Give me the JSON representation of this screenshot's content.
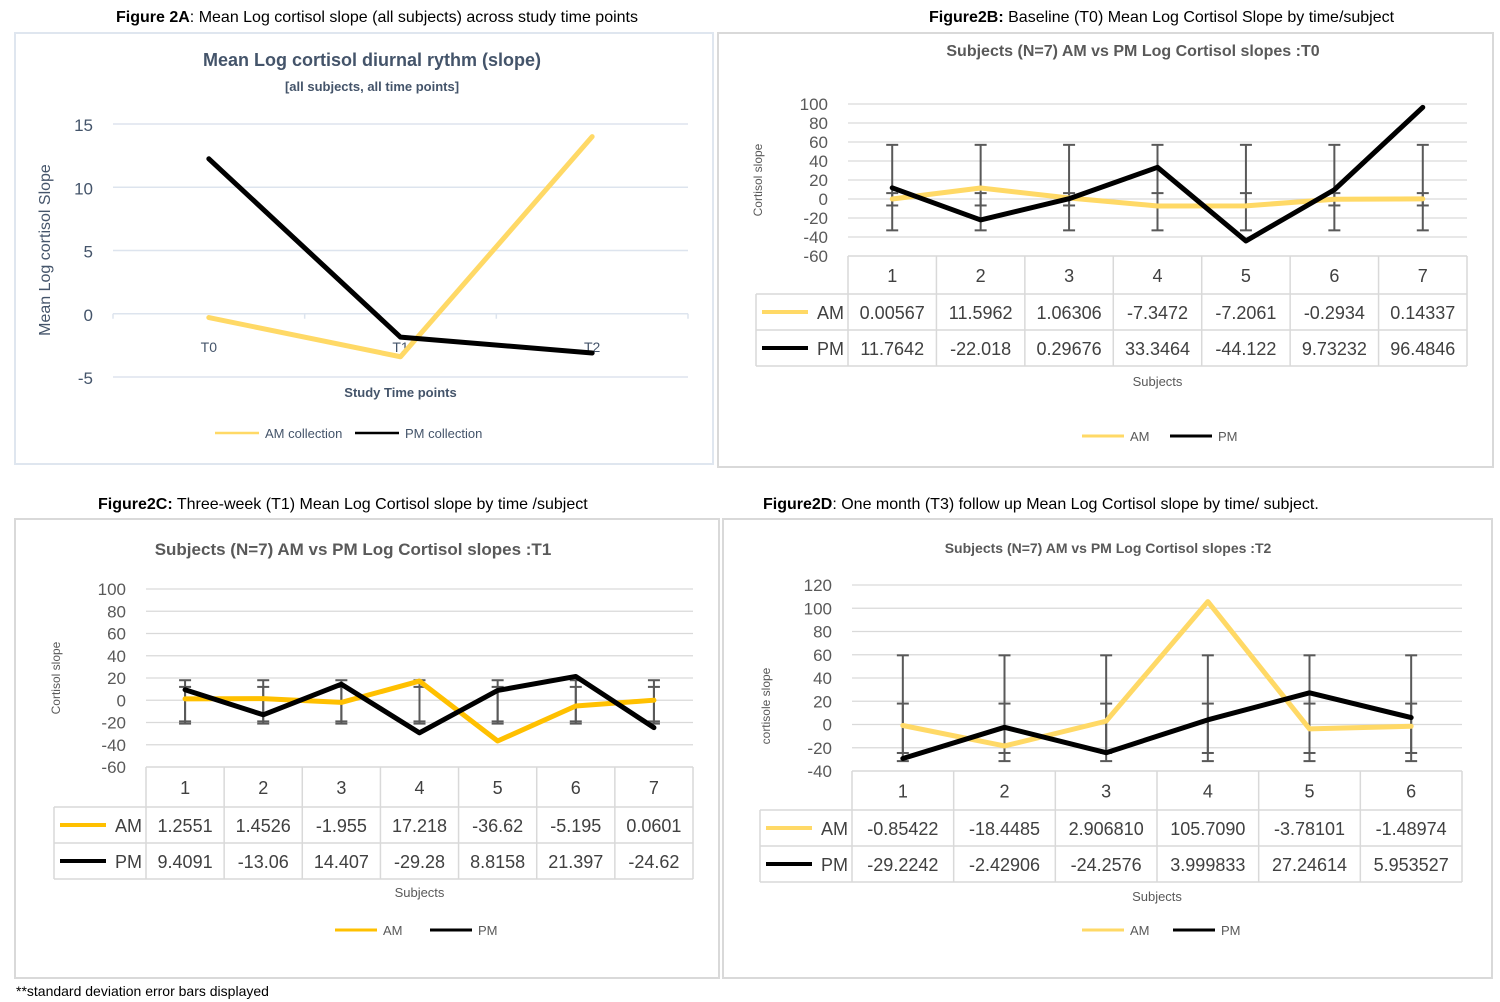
{
  "captions": {
    "a": {
      "bold": "Figure 2A",
      "rest": ": Mean Log cortisol slope (all subjects) across study time points"
    },
    "b": {
      "bold": "Figure2B:",
      "rest": " Baseline (T0) Mean Log Cortisol Slope by time/subject"
    },
    "c": {
      "bold": "Figure2C:",
      "rest": " Three-week (T1) Mean Log Cortisol slope by time /subject"
    },
    "d": {
      "bold": "Figure2D",
      "rest": ": One month (T3) follow up Mean Log Cortisol slope by time/ subject."
    }
  },
  "footnote": "**standard deviation error bars displayed",
  "colors": {
    "am_light": "#FFD966",
    "am_amber": "#FFC000",
    "pm": "#000000",
    "error_bar": "#595959",
    "grid": "#d9d9d9",
    "grid_blue": "#dde4ee",
    "slate_text": "#44546A",
    "gray_text": "#595959"
  },
  "chart_data": [
    {
      "id": "2A",
      "type": "line",
      "title": "Mean Log cortisol diurnal rythm (slope)",
      "subtitle": "[all subjects, all time points]",
      "xlabel": "Study Time points",
      "ylabel": "Mean Log cortisol Slope",
      "categories": [
        "T0",
        "T1",
        "T2"
      ],
      "ylim": [
        -5,
        15
      ],
      "yticks": [
        15,
        10,
        5,
        0,
        -5
      ],
      "grid": true,
      "legend_position": "bottom",
      "series": [
        {
          "name": "AM collection",
          "color": "#FFD966",
          "values": [
            -0.3,
            -3.4,
            14.0
          ]
        },
        {
          "name": "PM collection",
          "color": "#000000",
          "values": [
            12.25,
            -1.85,
            -3.1
          ]
        }
      ]
    },
    {
      "id": "2B",
      "type": "line",
      "title": "Subjects (N=7) AM vs PM Log Cortisol slopes :T0",
      "xlabel": "Subjects",
      "ylabel": "Cortisol slope",
      "categories": [
        "1",
        "2",
        "3",
        "4",
        "5",
        "6",
        "7"
      ],
      "ylim": [
        -60,
        100
      ],
      "yticks": [
        100,
        80,
        60,
        40,
        20,
        0,
        -20,
        -40,
        -60
      ],
      "grid": true,
      "legend_position": "bottom",
      "data_table": true,
      "error_bars": "standard deviation",
      "series": [
        {
          "name": "AM",
          "color": "#FFD966",
          "values": [
            0.00567,
            11.5962,
            1.06306,
            -7.3472,
            -7.2061,
            -0.2934,
            0.14337
          ],
          "labels": [
            "0.00567",
            "11.5962",
            "1.06306",
            "-7.3472",
            "-7.2061",
            "-0.2934",
            "0.14337"
          ],
          "error_range": [
            -6.8,
            6.2
          ]
        },
        {
          "name": "PM",
          "color": "#000000",
          "values": [
            11.7642,
            -22.018,
            0.29676,
            33.3464,
            -44.122,
            9.73232,
            96.4846
          ],
          "labels": [
            "11.7642",
            "-22.018",
            "0.29676",
            "33.3464",
            "-44.122",
            "9.73232",
            "96.4846"
          ],
          "error_range": [
            -33,
            57
          ]
        }
      ]
    },
    {
      "id": "2C",
      "type": "line",
      "title": "Subjects (N=7) AM vs PM Log Cortisol slopes :T1",
      "xlabel": "Subjects",
      "ylabel": "Cortisol slope",
      "categories": [
        "1",
        "2",
        "3",
        "4",
        "5",
        "6",
        "7"
      ],
      "ylim": [
        -60,
        100
      ],
      "yticks": [
        100,
        80,
        60,
        40,
        20,
        0,
        -20,
        -40,
        -60
      ],
      "grid": true,
      "legend_position": "bottom",
      "data_table": true,
      "error_bars": "standard deviation",
      "series": [
        {
          "name": "AM",
          "color": "#FFC000",
          "values": [
            1.2551,
            1.4526,
            -1.955,
            17.218,
            -36.62,
            -5.195,
            0.0601
          ],
          "labels": [
            "1.2551",
            "1.4526",
            "-1.955",
            "17.218",
            "-36.62",
            "-5.195",
            "0.0601"
          ],
          "error_range": [
            -19,
            12
          ]
        },
        {
          "name": "PM",
          "color": "#000000",
          "values": [
            9.4091,
            -13.06,
            14.407,
            -29.28,
            8.8158,
            21.397,
            -24.62
          ],
          "labels": [
            "9.4091",
            "-13.06",
            "14.407",
            "-29.28",
            "8.8158",
            "21.397",
            "-24.62"
          ],
          "error_range": [
            -21,
            18
          ]
        }
      ]
    },
    {
      "id": "2D",
      "type": "line",
      "title": "Subjects (N=7) AM vs PM Log Cortisol slopes :T2",
      "xlabel": "Subjects",
      "ylabel": "cortisole slope",
      "categories": [
        "1",
        "2",
        "3",
        "4",
        "5",
        "6"
      ],
      "ylim": [
        -40,
        120
      ],
      "yticks": [
        120,
        100,
        80,
        60,
        40,
        20,
        0,
        -20,
        -40
      ],
      "grid": true,
      "legend_position": "bottom",
      "data_table": true,
      "error_bars": "standard deviation",
      "series": [
        {
          "name": "AM",
          "color": "#FFD966",
          "values": [
            -0.85422,
            -18.4485,
            2.90681,
            105.709,
            -3.78101,
            -1.48974
          ],
          "labels": [
            "-0.85422",
            "-18.4485",
            "2.906810",
            "105.7090",
            "-3.78101",
            "-1.48974"
          ],
          "error_range": [
            -31.5,
            59.5
          ]
        },
        {
          "name": "PM",
          "color": "#000000",
          "values": [
            -29.2242,
            -2.42906,
            -24.2576,
            3.999833,
            27.24614,
            5.953527
          ],
          "labels": [
            "-29.2242",
            "-2.42906",
            "-24.2576",
            "3.999833",
            "27.24614",
            "5.953527"
          ],
          "error_range": [
            -24.5,
            18
          ]
        }
      ]
    }
  ]
}
